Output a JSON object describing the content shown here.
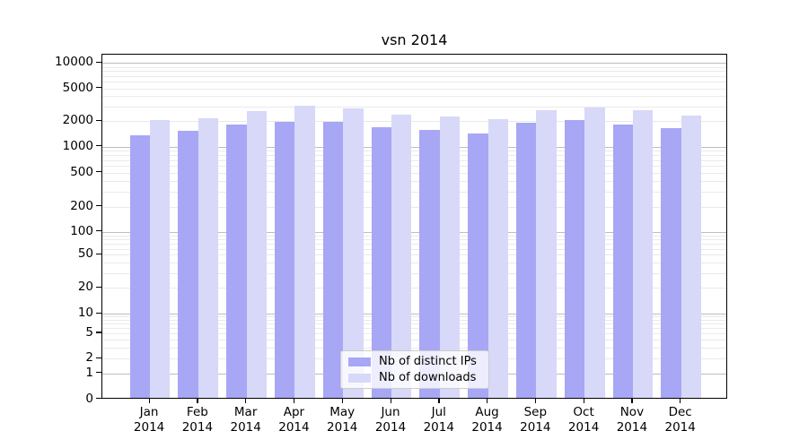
{
  "title": "vsn 2014",
  "colors": {
    "bar_distinct_ips": "#a7a7f5",
    "bar_downloads": "#d8d8f8",
    "grid_major": "#bdbdbd",
    "grid_minor": "#eaeaea",
    "spine": "#000000",
    "legend_border": "#cccccc"
  },
  "legend": {
    "items": [
      {
        "label": "Nb of distinct IPs",
        "swatch": "bar_distinct_ips"
      },
      {
        "label": "Nb of downloads",
        "swatch": "bar_downloads"
      }
    ]
  },
  "chart_data": {
    "type": "bar",
    "title": "vsn 2014",
    "categories": [
      "Jan 2014",
      "Feb 2014",
      "Mar 2014",
      "Apr 2014",
      "May 2014",
      "Jun 2014",
      "Jul 2014",
      "Aug 2014",
      "Sep 2014",
      "Oct 2014",
      "Nov 2014",
      "Dec 2014"
    ],
    "series": [
      {
        "name": "Nb of distinct IPs",
        "color_key": "bar_distinct_ips",
        "values": [
          1350,
          1500,
          1800,
          1930,
          1930,
          1670,
          1550,
          1400,
          1880,
          2050,
          1800,
          1650
        ]
      },
      {
        "name": "Nb of downloads",
        "color_key": "bar_downloads",
        "values": [
          2050,
          2150,
          2600,
          3050,
          2780,
          2350,
          2250,
          2100,
          2650,
          2900,
          2650,
          2300
        ]
      }
    ],
    "xlabel": "",
    "ylabel": "",
    "yscale": "symlog",
    "ylim": [
      0,
      13000
    ],
    "yticks": [
      0,
      1,
      2,
      5,
      10,
      20,
      50,
      100,
      200,
      500,
      1000,
      2000,
      5000,
      10000
    ],
    "grid": "both",
    "legend_position": "lower center"
  }
}
